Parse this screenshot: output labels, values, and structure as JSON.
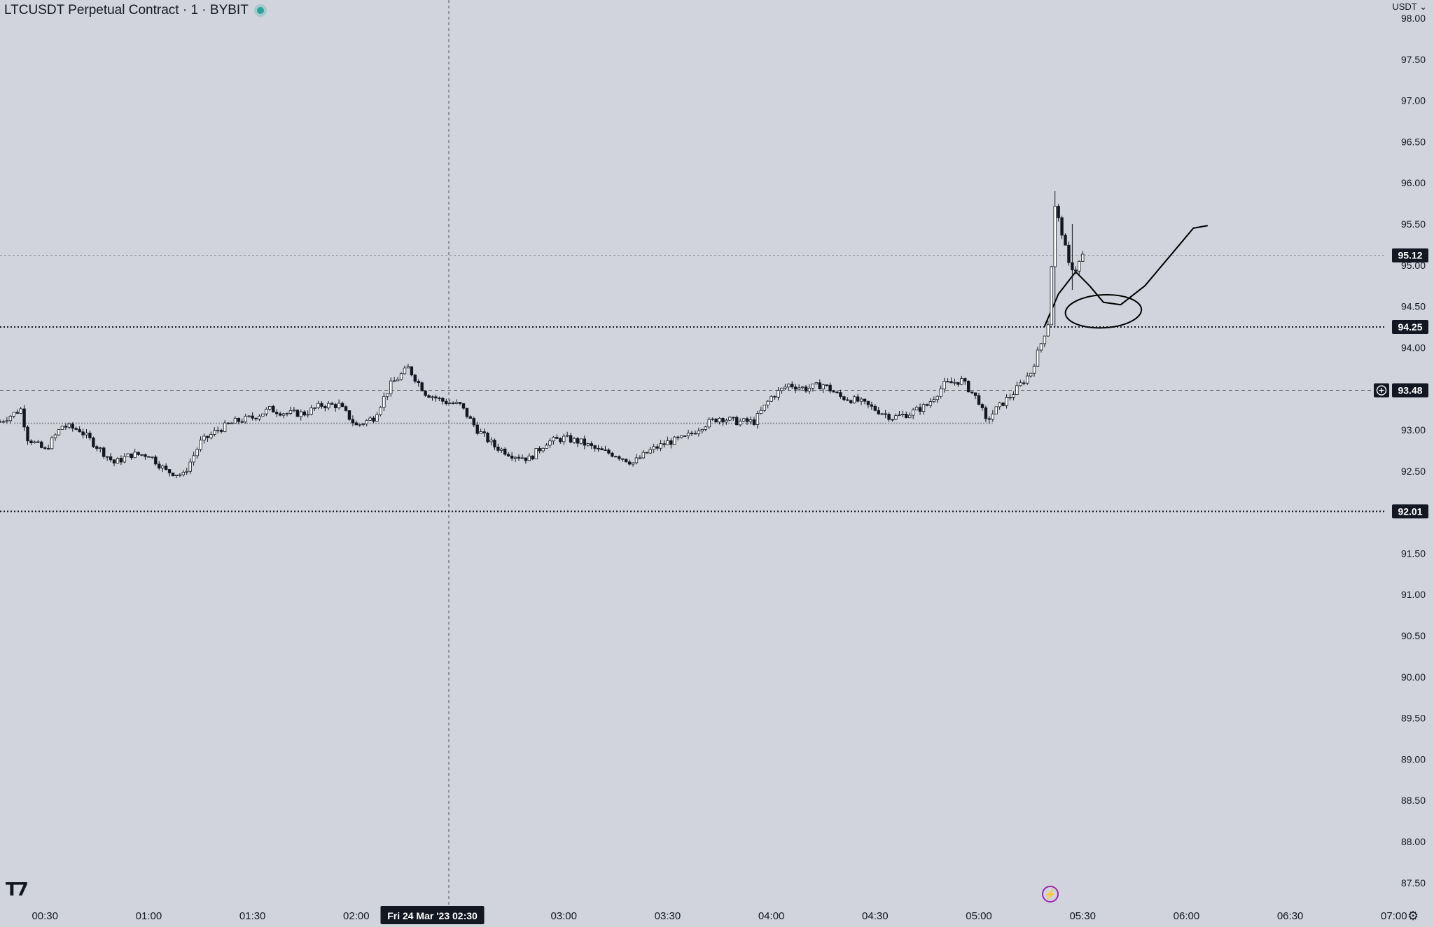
{
  "header": {
    "symbol_title": "LTCUSDT Perpetual Contract · 1 · BYBIT",
    "currency": "USDT"
  },
  "icons": {
    "logo": "tradingview-logo",
    "bolt": "lightning-icon",
    "settings": "gear-icon"
  },
  "colors": {
    "background": "#d1d4dc",
    "candle": "#131722",
    "live": "#26a69a",
    "bolt": "#9c27b0"
  },
  "chart_data": {
    "type": "candlestick",
    "ylim": [
      87.25,
      98.0
    ],
    "y_ticks": [
      "98.00",
      "97.50",
      "97.00",
      "96.50",
      "96.00",
      "95.50",
      "95.00",
      "94.50",
      "94.00",
      "93.50",
      "93.00",
      "92.50",
      "92.00",
      "91.50",
      "91.00",
      "90.50",
      "90.00",
      "89.50",
      "89.00",
      "88.50",
      "88.00",
      "87.50"
    ],
    "x_ticks": [
      "00:30",
      "01:00",
      "01:30",
      "02:00",
      "02:30",
      "03:00",
      "03:30",
      "04:00",
      "04:30",
      "05:00",
      "05:30",
      "06:00",
      "06:30",
      "07:00"
    ],
    "x_range_minutes": [
      17,
      427
    ],
    "crosshair": {
      "time_minutes": 142,
      "label": "Fri 24 Mar '23   02:30"
    },
    "price_labels": [
      {
        "value": 95.12,
        "text": "95.12",
        "style": "last-price"
      },
      {
        "value": 94.25,
        "text": "94.25",
        "style": "dotted-level"
      },
      {
        "value": 93.48,
        "text": "93.48",
        "style": "crosshair"
      },
      {
        "value": 92.01,
        "text": "92.01",
        "style": "dotted-level"
      }
    ],
    "anchor_prices": [
      [
        17,
        93.1
      ],
      [
        23,
        93.25
      ],
      [
        25,
        92.9
      ],
      [
        30,
        92.75
      ],
      [
        35,
        93.05
      ],
      [
        40,
        93.0
      ],
      [
        45,
        92.8
      ],
      [
        50,
        92.6
      ],
      [
        55,
        92.7
      ],
      [
        60,
        92.7
      ],
      [
        65,
        92.5
      ],
      [
        70,
        92.45
      ],
      [
        75,
        92.85
      ],
      [
        80,
        93.0
      ],
      [
        85,
        93.1
      ],
      [
        90,
        93.15
      ],
      [
        95,
        93.25
      ],
      [
        100,
        93.2
      ],
      [
        105,
        93.2
      ],
      [
        110,
        93.3
      ],
      [
        115,
        93.3
      ],
      [
        120,
        93.05
      ],
      [
        125,
        93.15
      ],
      [
        130,
        93.55
      ],
      [
        135,
        93.75
      ],
      [
        140,
        93.45
      ],
      [
        145,
        93.35
      ],
      [
        150,
        93.3
      ],
      [
        155,
        93.0
      ],
      [
        160,
        92.8
      ],
      [
        165,
        92.7
      ],
      [
        170,
        92.65
      ],
      [
        175,
        92.85
      ],
      [
        180,
        92.9
      ],
      [
        185,
        92.85
      ],
      [
        190,
        92.75
      ],
      [
        195,
        92.7
      ],
      [
        200,
        92.6
      ],
      [
        205,
        92.75
      ],
      [
        210,
        92.85
      ],
      [
        215,
        92.9
      ],
      [
        220,
        93.05
      ],
      [
        225,
        93.15
      ],
      [
        230,
        93.1
      ],
      [
        235,
        93.1
      ],
      [
        240,
        93.4
      ],
      [
        245,
        93.55
      ],
      [
        250,
        93.5
      ],
      [
        255,
        93.55
      ],
      [
        260,
        93.4
      ],
      [
        265,
        93.35
      ],
      [
        270,
        93.25
      ],
      [
        275,
        93.15
      ],
      [
        280,
        93.2
      ],
      [
        285,
        93.3
      ],
      [
        290,
        93.55
      ],
      [
        295,
        93.6
      ],
      [
        300,
        93.35
      ],
      [
        302,
        93.1
      ],
      [
        305,
        93.25
      ],
      [
        310,
        93.45
      ],
      [
        315,
        93.7
      ],
      [
        318,
        94.05
      ],
      [
        320,
        94.3
      ],
      [
        322,
        95.7
      ],
      [
        324,
        95.4
      ],
      [
        326,
        95.0
      ],
      [
        328,
        94.95
      ],
      [
        330,
        95.12
      ]
    ],
    "drawing_arc_prices": [
      [
        319,
        94.26
      ],
      [
        323,
        94.65
      ],
      [
        328,
        94.92
      ],
      [
        332,
        94.75
      ],
      [
        336,
        94.55
      ],
      [
        341,
        94.52
      ],
      [
        348,
        94.75
      ],
      [
        356,
        95.15
      ],
      [
        362,
        95.45
      ],
      [
        366,
        95.48
      ]
    ],
    "drawing_ellipse": {
      "center_time": 336,
      "center_price": 94.44,
      "time_radius": 11,
      "price_radius": 0.2
    },
    "grid": false
  }
}
